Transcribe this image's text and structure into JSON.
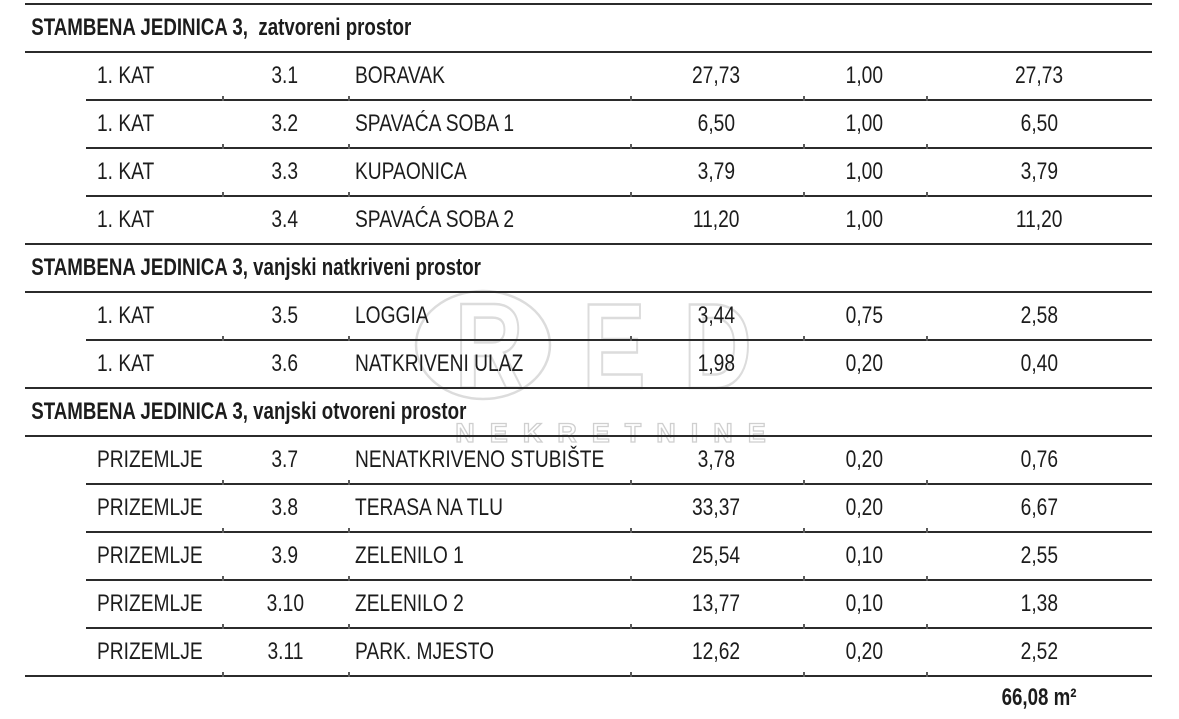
{
  "document": {
    "sections": [
      {
        "header": "STAMBENA JEDINICA 3,  zatvoreni prostor",
        "rows": [
          {
            "floor": "1. KAT",
            "id": "3.1",
            "name": "BORAVAK",
            "area": "27,73",
            "coef": "1,00",
            "result": "27,73"
          },
          {
            "floor": "1. KAT",
            "id": "3.2",
            "name": "SPAVAĆA SOBA 1",
            "area": "6,50",
            "coef": "1,00",
            "result": "6,50"
          },
          {
            "floor": "1. KAT",
            "id": "3.3",
            "name": "KUPAONICA",
            "area": "3,79",
            "coef": "1,00",
            "result": "3,79"
          },
          {
            "floor": "1. KAT",
            "id": "3.4",
            "name": "SPAVAĆA SOBA 2",
            "area": "11,20",
            "coef": "1,00",
            "result": "11,20"
          }
        ]
      },
      {
        "header": "STAMBENA JEDINICA 3, vanjski natkriveni prostor",
        "rows": [
          {
            "floor": "1. KAT",
            "id": "3.5",
            "name": "LOGGIA",
            "area": "3,44",
            "coef": "0,75",
            "result": "2,58"
          },
          {
            "floor": "1. KAT",
            "id": "3.6",
            "name": "NATKRIVENI ULAZ",
            "area": "1,98",
            "coef": "0,20",
            "result": "0,40"
          }
        ]
      },
      {
        "header": "STAMBENA JEDINICA 3, vanjski otvoreni prostor",
        "rows": [
          {
            "floor": "PRIZEMLJE",
            "id": "3.7",
            "name": "NENATKRIVENO STUBIŠTE",
            "area": "3,78",
            "coef": "0,20",
            "result": "0,76"
          },
          {
            "floor": "PRIZEMLJE",
            "id": "3.8",
            "name": "TERASA NA TLU",
            "area": "33,37",
            "coef": "0,20",
            "result": "6,67"
          },
          {
            "floor": "PRIZEMLJE",
            "id": "3.9",
            "name": "ZELENILO 1",
            "area": "25,54",
            "coef": "0,10",
            "result": "2,55"
          },
          {
            "floor": "PRIZEMLJE",
            "id": "3.10",
            "name": "ZELENILO 2",
            "area": "13,77",
            "coef": "0,10",
            "result": "1,38"
          },
          {
            "floor": "PRIZEMLJE",
            "id": "3.11",
            "name": "PARK. MJESTO",
            "area": "12,62",
            "coef": "0,20",
            "result": "2,52"
          }
        ]
      }
    ],
    "total": "66,08 m²"
  },
  "watermark": {
    "letters": [
      "R",
      "E",
      "D"
    ],
    "subtitle": "NEKRETNINE"
  },
  "colors": {
    "text": "#1c1c1c",
    "line": "#2b2b2b",
    "watermark_large": "#dcdcdc",
    "watermark_small": "#cfcfcf"
  }
}
